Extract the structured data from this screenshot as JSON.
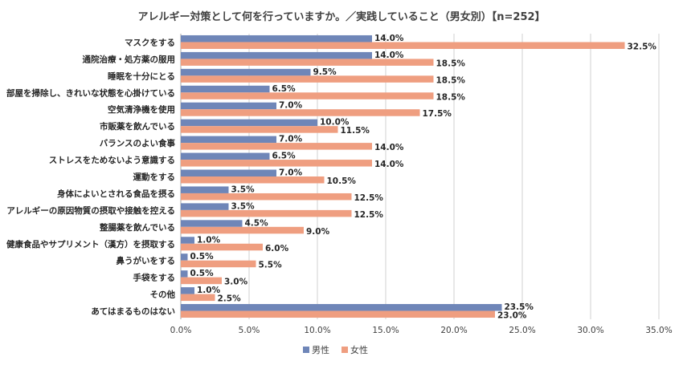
{
  "chart_data": {
    "type": "bar",
    "orientation": "horizontal",
    "title": "アレルギー対策として何を行っていますか。／実践していること（男女別）【n=252】",
    "categories": [
      "マスクをする",
      "通院治療・処方薬の服用",
      "睡眠を十分にとる",
      "部屋を掃除し、きれいな状態を心掛けている",
      "空気清浄機を使用",
      "市販薬を飲んでいる",
      "バランスのよい食事",
      "ストレスをためないよう意識する",
      "運動をする",
      "身体によいとされる食品を摂る",
      "アレルギーの原因物質の摂取や接触を控える",
      "整腸薬を飲んでいる",
      "健康食品やサプリメント（漢方）を摂取する",
      "鼻うがいをする",
      "手袋をする",
      "その他",
      "あてはまるものはない"
    ],
    "series": [
      {
        "name": "男性",
        "color": "#6f86b8",
        "values": [
          14.0,
          14.0,
          9.5,
          6.5,
          7.0,
          10.0,
          7.0,
          6.5,
          7.0,
          3.5,
          3.5,
          4.5,
          1.0,
          0.5,
          0.5,
          1.0,
          23.5
        ],
        "labels": [
          "14.0%",
          "14.0%",
          "9.5%",
          "6.5%",
          "7.0%",
          "10.0%",
          "7.0%",
          "6.5%",
          "7.0%",
          "3.5%",
          "3.5%",
          "4.5%",
          "1.0%",
          "0.5%",
          "0.5%",
          "1.0%",
          "23.5%"
        ]
      },
      {
        "name": "女性",
        "color": "#ef9e80",
        "values": [
          32.5,
          18.5,
          18.5,
          18.5,
          17.5,
          11.5,
          14.0,
          14.0,
          10.5,
          12.5,
          12.5,
          9.0,
          6.0,
          5.5,
          3.0,
          2.5,
          23.0
        ],
        "labels": [
          "32.5%",
          "18.5%",
          "18.5%",
          "18.5%",
          "17.5%",
          "11.5%",
          "14.0%",
          "14.0%",
          "10.5%",
          "12.5%",
          "12.5%",
          "9.0%",
          "6.0%",
          "5.5%",
          "3.0%",
          "2.5%",
          "23.0%"
        ]
      }
    ],
    "xlim": [
      0,
      35
    ],
    "x_ticks": [
      0,
      5,
      10,
      15,
      20,
      25,
      30,
      35
    ],
    "x_tick_labels": [
      "0.0%",
      "5.0%",
      "10.0%",
      "15.0%",
      "20.0%",
      "25.0%",
      "30.0%",
      "35.0%"
    ],
    "grid": true,
    "legend_position": "bottom"
  }
}
